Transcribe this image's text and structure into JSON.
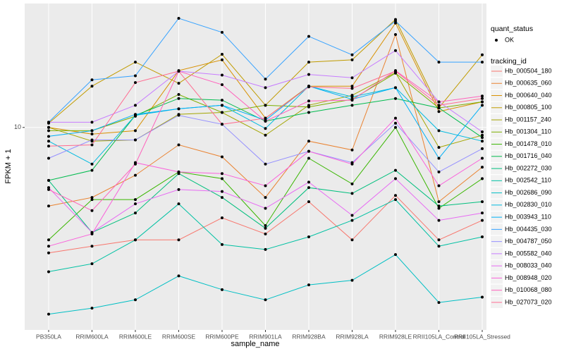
{
  "chart_data": {
    "type": "line",
    "x_label": "sample_name",
    "y_label": "FPKM + 1",
    "categories": [
      "PB350LA",
      "RRIM600LA",
      "RRIM600LE",
      "RRIM600SE",
      "RRIM600PE",
      "RRIM901LA",
      "RRIM928BA",
      "RRIM928LA",
      "RRIM928LE",
      "RRII105LA_Control",
      "RRII105LA_Stressed"
    ],
    "ylim": [
      1.51,
      31.8
    ],
    "yticks": [
      10
    ],
    "log_scale": true,
    "grid": true,
    "status_legend": {
      "title": "quant_status",
      "labels": [
        "OK"
      ]
    },
    "legend_title": "tracking_id",
    "series": [
      {
        "name": "Hb_000504_180",
        "color": "#F8766D",
        "values": [
          3.1,
          3.3,
          3.5,
          3.5,
          4.3,
          3.7,
          5.0,
          3.5,
          5.3,
          3.5,
          4.2
        ]
      },
      {
        "name": "Hb_000635_060",
        "color": "#EA8331",
        "values": [
          4.8,
          5.2,
          6.4,
          8.5,
          7.6,
          5.2,
          8.8,
          8.1,
          23.8,
          5.0,
          6.9
        ]
      },
      {
        "name": "Hb_000640_040",
        "color": "#D89000",
        "values": [
          10,
          9.4,
          9.7,
          17.0,
          18.8,
          10.9,
          14.7,
          14.7,
          26.5,
          11.6,
          12.7
        ]
      },
      {
        "name": "Hb_000805_100",
        "color": "#C09B00",
        "values": [
          10.4,
          14.7,
          18.4,
          15.1,
          19.8,
          12.3,
          18.4,
          18.8,
          27.4,
          12.0,
          19.7
        ]
      },
      {
        "name": "Hb_001157_240",
        "color": "#A3A500",
        "values": [
          10,
          8.8,
          8.9,
          11.3,
          11.5,
          9.3,
          12.3,
          13.5,
          16.7,
          8.3,
          9.3
        ]
      },
      {
        "name": "Hb_001304_110",
        "color": "#7CAE00",
        "values": [
          9.7,
          9.7,
          11.1,
          13.6,
          11.5,
          12.3,
          12.1,
          13.0,
          16.6,
          12.0,
          12.7
        ]
      },
      {
        "name": "Hb_001478_010",
        "color": "#39B600",
        "values": [
          3.5,
          5.1,
          5.1,
          6.6,
          6.2,
          4.0,
          7.5,
          5.9,
          10,
          4.7,
          6.2
        ]
      },
      {
        "name": "Hb_001716_040",
        "color": "#00BB4E",
        "values": [
          6.1,
          6.7,
          11.2,
          13.1,
          12.9,
          10.6,
          11.5,
          12.3,
          13.1,
          12.0,
          9.1
        ]
      },
      {
        "name": "Hb_002272_030",
        "color": "#00BF7D",
        "values": [
          6.1,
          3.75,
          4.5,
          6.5,
          5.2,
          3.9,
          5.7,
          5.4,
          6.7,
          4.8,
          5.0
        ]
      },
      {
        "name": "Hb_002542_110",
        "color": "#00C1A3",
        "values": [
          2.6,
          2.8,
          3.5,
          4.9,
          3.35,
          3.2,
          3.6,
          4.2,
          5.1,
          3.3,
          3.6
        ]
      },
      {
        "name": "Hb_002686_090",
        "color": "#00BFC4",
        "values": [
          1.75,
          1.85,
          2.0,
          2.5,
          2.2,
          2.0,
          2.3,
          2.4,
          3.05,
          1.95,
          2.05
        ]
      },
      {
        "name": "Hb_002830_010",
        "color": "#00BAE0",
        "values": [
          8.8,
          7.1,
          11.2,
          11.9,
          12.3,
          9.9,
          14.7,
          13.3,
          14.5,
          9.7,
          8.8
        ]
      },
      {
        "name": "Hb_003943_110",
        "color": "#00B0F6",
        "values": [
          9.2,
          9.7,
          11.3,
          11.9,
          12.3,
          10.7,
          14.7,
          13.0,
          14.5,
          7.5,
          12.3
        ]
      },
      {
        "name": "Hb_004435_030",
        "color": "#35A2FF",
        "values": [
          10.5,
          15.6,
          16.2,
          27.7,
          24.3,
          15.7,
          23.4,
          19.7,
          27.0,
          18.4,
          18.4
        ]
      },
      {
        "name": "Hb_004787_050",
        "color": "#9590FF",
        "values": [
          7.5,
          8.9,
          8.9,
          11.2,
          10.3,
          7.1,
          8.0,
          7.2,
          10.4,
          6.6,
          8.2
        ]
      },
      {
        "name": "Hb_005582_040",
        "color": "#C77CFF",
        "values": [
          10.5,
          10.5,
          12.3,
          16.9,
          16.3,
          14.5,
          16.4,
          15.9,
          20.5,
          12.7,
          9.6
        ]
      },
      {
        "name": "Hb_008033_040",
        "color": "#E76BF3",
        "values": [
          5.7,
          3.75,
          4.9,
          5.6,
          5.5,
          4.7,
          6.0,
          4.4,
          6.2,
          4.2,
          4.5
        ]
      },
      {
        "name": "Hb_008948_020",
        "color": "#FA62DB",
        "values": [
          3.3,
          3.7,
          7.2,
          6.6,
          6.5,
          5.8,
          8.0,
          7.1,
          10.9,
          5.8,
          7.5
        ]
      },
      {
        "name": "Hb_010068_080",
        "color": "#FF62BC",
        "values": [
          5.6,
          4.6,
          7.1,
          16.9,
          14.9,
          10.6,
          12.8,
          12.9,
          17.0,
          12.7,
          13.4
        ]
      },
      {
        "name": "Hb_027073_020",
        "color": "#FF6C91",
        "values": [
          8.4,
          8.5,
          15.2,
          16.9,
          10.3,
          10.9,
          14.6,
          14.4,
          16.9,
          12.3,
          13.1
        ]
      }
    ]
  }
}
